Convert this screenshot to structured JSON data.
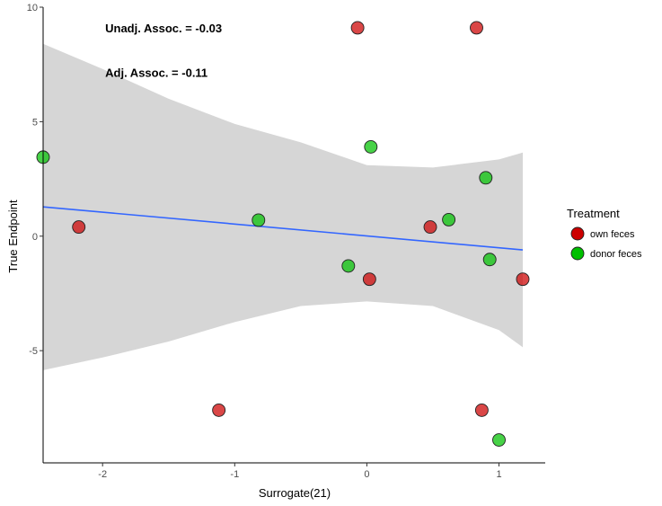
{
  "chart_data": {
    "type": "scatter",
    "title": "",
    "xlabel": "Surrogate(21)",
    "ylabel": "True Endpoint",
    "xlim": [
      -2.45,
      1.35
    ],
    "ylim": [
      -9.9,
      10.0
    ],
    "xticks": [
      -2,
      -1,
      0,
      1
    ],
    "xtick_labels": [
      "-2",
      "-1",
      "0",
      "1"
    ],
    "yticks": [
      -5,
      0,
      5,
      10
    ],
    "ytick_labels": [
      "-5",
      "0",
      "5",
      "10"
    ],
    "grid": false,
    "legend": {
      "title": "Treatment",
      "placement": "right",
      "entries": [
        {
          "label": "own feces",
          "color": "#cc0000"
        },
        {
          "label": "donor feces",
          "color": "#00c000"
        }
      ]
    },
    "annotations": [
      {
        "text": "Unadj. Assoc. = -0.03",
        "x": -1.98,
        "y": 8.9
      },
      {
        "text": "Adj. Assoc. = -0.11",
        "x": -1.98,
        "y": 6.95
      }
    ],
    "regression_line": {
      "x": [
        -2.45,
        1.18
      ],
      "y": [
        1.28,
        -0.6
      ],
      "color": "#3366ff"
    },
    "confidence_band": {
      "color": "#d6d6d6",
      "x": [
        -2.45,
        -2.0,
        -1.5,
        -1.0,
        -0.5,
        0.0,
        0.5,
        1.0,
        1.18
      ],
      "upper": [
        8.4,
        7.3,
        6.0,
        4.9,
        4.1,
        3.1,
        3.0,
        3.35,
        3.65
      ],
      "lower": [
        -5.85,
        -5.3,
        -4.6,
        -3.75,
        -3.05,
        -2.85,
        -3.05,
        -4.1,
        -4.85
      ]
    },
    "series": [
      {
        "name": "own feces",
        "color": "#cc0000",
        "x": [
          -0.07,
          0.83,
          -2.18,
          0.48,
          0.02,
          1.18,
          -1.12,
          0.87
        ],
        "y": [
          9.1,
          9.1,
          0.4,
          0.4,
          -1.88,
          -1.88,
          -7.6,
          -7.6
        ]
      },
      {
        "name": "donor feces",
        "color": "#00c000",
        "x": [
          -2.45,
          0.03,
          0.9,
          -0.82,
          0.62,
          -0.14,
          0.93,
          1.0
        ],
        "y": [
          3.45,
          3.9,
          2.55,
          0.7,
          0.72,
          -1.3,
          -1.02,
          -8.9
        ]
      }
    ]
  }
}
